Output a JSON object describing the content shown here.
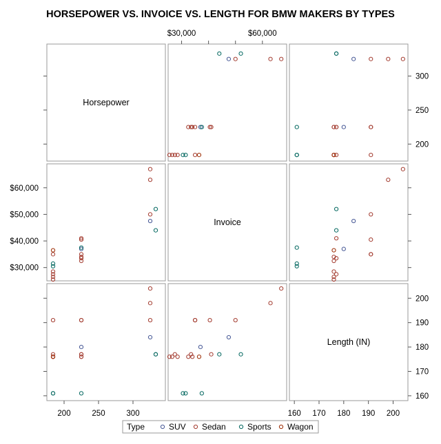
{
  "chart_data": {
    "type": "scatter",
    "title": "HORSEPOWER VS. INVOICE VS. LENGTH FOR BMW MAKERS BY TYPES",
    "variables": [
      "Horsepower",
      "Invoice",
      "Length (IN)"
    ],
    "axes": {
      "horsepower": {
        "ticks": [
          200,
          250,
          300
        ],
        "tick_labels": [
          "200",
          "250",
          "300"
        ],
        "range": [
          175,
          347
        ]
      },
      "invoice": {
        "ticks": [
          30000,
          40000,
          50000,
          60000
        ],
        "tick_labels": [
          "$30,000",
          "$40,000",
          "$50,000",
          "$60,000"
        ],
        "range": [
          25000,
          69000
        ]
      },
      "length": {
        "ticks": [
          160,
          170,
          180,
          190,
          200
        ],
        "tick_labels": [
          "160",
          "170",
          "180",
          "190",
          "200"
        ],
        "range": [
          158,
          206
        ]
      }
    },
    "grid": false,
    "legend": {
      "title": "Type",
      "position": "bottom"
    },
    "series": [
      {
        "name": "SUV",
        "color": "#445694",
        "points": [
          {
            "horsepower": 225,
            "invoice": 37000,
            "length": 180
          },
          {
            "horsepower": 325,
            "invoice": 47500,
            "length": 184
          }
        ]
      },
      {
        "name": "Sedan",
        "color": "#A23A2E",
        "points": [
          {
            "horsepower": 184,
            "invoice": 25500,
            "length": 176
          },
          {
            "horsepower": 184,
            "invoice": 26500,
            "length": 176
          },
          {
            "horsepower": 184,
            "invoice": 27500,
            "length": 177
          },
          {
            "horsepower": 184,
            "invoice": 28500,
            "length": 176
          },
          {
            "horsepower": 225,
            "invoice": 32500,
            "length": 176
          },
          {
            "horsepower": 225,
            "invoice": 33500,
            "length": 177
          },
          {
            "horsepower": 225,
            "invoice": 34000,
            "length": 176
          },
          {
            "horsepower": 225,
            "invoice": 35000,
            "length": 191
          },
          {
            "horsepower": 184,
            "invoice": 35000,
            "length": 191
          },
          {
            "horsepower": 225,
            "invoice": 40500,
            "length": 191
          },
          {
            "horsepower": 225,
            "invoice": 41000,
            "length": 177
          },
          {
            "horsepower": 325,
            "invoice": 50000,
            "length": 191
          },
          {
            "horsepower": 325,
            "invoice": 63000,
            "length": 198
          },
          {
            "horsepower": 325,
            "invoice": 67000,
            "length": 204
          }
        ]
      },
      {
        "name": "Sports",
        "color": "#01665E",
        "points": [
          {
            "horsepower": 184,
            "invoice": 30500,
            "length": 161
          },
          {
            "horsepower": 184,
            "invoice": 31500,
            "length": 161
          },
          {
            "horsepower": 225,
            "invoice": 37500,
            "length": 161
          },
          {
            "horsepower": 333,
            "invoice": 44000,
            "length": 177
          },
          {
            "horsepower": 333,
            "invoice": 52000,
            "length": 177
          }
        ]
      },
      {
        "name": "Wagon",
        "color": "#9C2A00",
        "points": [
          {
            "horsepower": 184,
            "invoice": 36500,
            "length": 176
          }
        ]
      }
    ]
  }
}
